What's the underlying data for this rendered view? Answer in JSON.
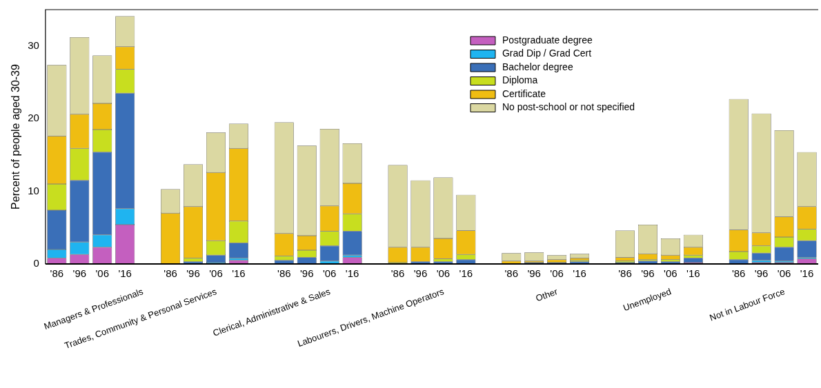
{
  "chart_data": {
    "type": "bar",
    "stacked": true,
    "ylabel": "Percent of people aged 30-39",
    "categories": [
      "'86",
      "'96",
      "'06",
      "'16",
      null,
      "'86",
      "'96",
      "'06",
      "'16",
      null,
      "'86",
      "'96",
      "'06",
      "'16",
      null,
      "'86",
      "'96",
      "'06",
      "'16",
      null,
      "'86",
      "'96",
      "'06",
      "'16",
      null,
      "'86",
      "'96",
      "'06",
      "'16",
      null,
      "'86",
      "'96",
      "'06",
      "'16"
    ],
    "series": [
      {
        "name": "Postgraduate degree",
        "color": "#c45fbf",
        "values": [
          0.8,
          1.3,
          2.3,
          5.4,
          null,
          0,
          0,
          0,
          0.5,
          null,
          0,
          0,
          0,
          0.9,
          null,
          0,
          0,
          0,
          0,
          null,
          0,
          0,
          0,
          0,
          null,
          0,
          0,
          0,
          0.2,
          null,
          0,
          0.2,
          0.2,
          0.7
        ]
      },
      {
        "name": "Grad Dip / Grad Cert",
        "color": "#1fb4f0",
        "values": [
          1.2,
          1.7,
          1.7,
          2.2,
          null,
          0,
          0,
          0.2,
          0.3,
          null,
          0,
          0,
          0.4,
          0.3,
          null,
          0,
          0,
          0,
          0,
          null,
          0,
          0,
          0,
          0,
          null,
          0,
          0,
          0,
          0,
          null,
          0,
          0.3,
          0.2,
          0.2
        ]
      },
      {
        "name": "Bachelor degree",
        "color": "#3a6fb8",
        "values": [
          5.4,
          8.5,
          11.4,
          15.9,
          null,
          0,
          0.3,
          1.0,
          2.1,
          null,
          0.5,
          0.9,
          2.1,
          3.3,
          null,
          0,
          0.3,
          0.3,
          0.6,
          null,
          0,
          0.2,
          0.2,
          0.3,
          null,
          0.2,
          0.4,
          0.3,
          0.6,
          null,
          0.6,
          1.0,
          1.9,
          2.3
        ]
      },
      {
        "name": "Diploma",
        "color": "#c8de1f",
        "values": [
          3.6,
          4.4,
          3.1,
          3.3,
          null,
          0,
          0.5,
          2.0,
          3.0,
          null,
          0.6,
          1.0,
          2.0,
          2.4,
          null,
          0.2,
          0,
          0.4,
          0.7,
          null,
          0,
          0,
          0,
          0.2,
          null,
          0.2,
          0.2,
          0.3,
          0.4,
          null,
          1.1,
          1.0,
          1.4,
          1.6
        ]
      },
      {
        "name": "Certificate",
        "color": "#efbd12",
        "values": [
          6.6,
          4.7,
          3.6,
          3.1,
          null,
          7.0,
          7.1,
          9.4,
          10.0,
          null,
          3.1,
          2.0,
          3.5,
          4.2,
          null,
          2.1,
          2.0,
          2.8,
          3.3,
          null,
          0.4,
          0.2,
          0.4,
          0.3,
          null,
          0.5,
          0.8,
          0.6,
          1.1,
          null,
          3.0,
          1.8,
          2.8,
          3.1
        ]
      },
      {
        "name": "No post-school or not specified",
        "color": "#dbd8a2",
        "values": [
          9.8,
          10.6,
          6.6,
          4.2,
          null,
          3.3,
          5.8,
          5.5,
          3.4,
          null,
          15.3,
          12.4,
          10.6,
          5.5,
          null,
          11.3,
          9.2,
          8.4,
          4.9,
          null,
          1.1,
          1.2,
          0.6,
          0.6,
          null,
          3.7,
          4.0,
          2.3,
          1.7,
          null,
          18.0,
          16.4,
          11.9,
          7.5
        ]
      }
    ],
    "ylim": [
      0,
      35
    ],
    "yticks": [
      0,
      10,
      20,
      30
    ],
    "legend": "top right",
    "annotations": [
      "Managers & Professionals",
      "Trades, Community & Personal Services",
      "Clerical, Administrative & Sales",
      "Labourers, Drivers, Machine Operators",
      "Other",
      "Unemployed",
      "Not in Labour Force"
    ]
  }
}
